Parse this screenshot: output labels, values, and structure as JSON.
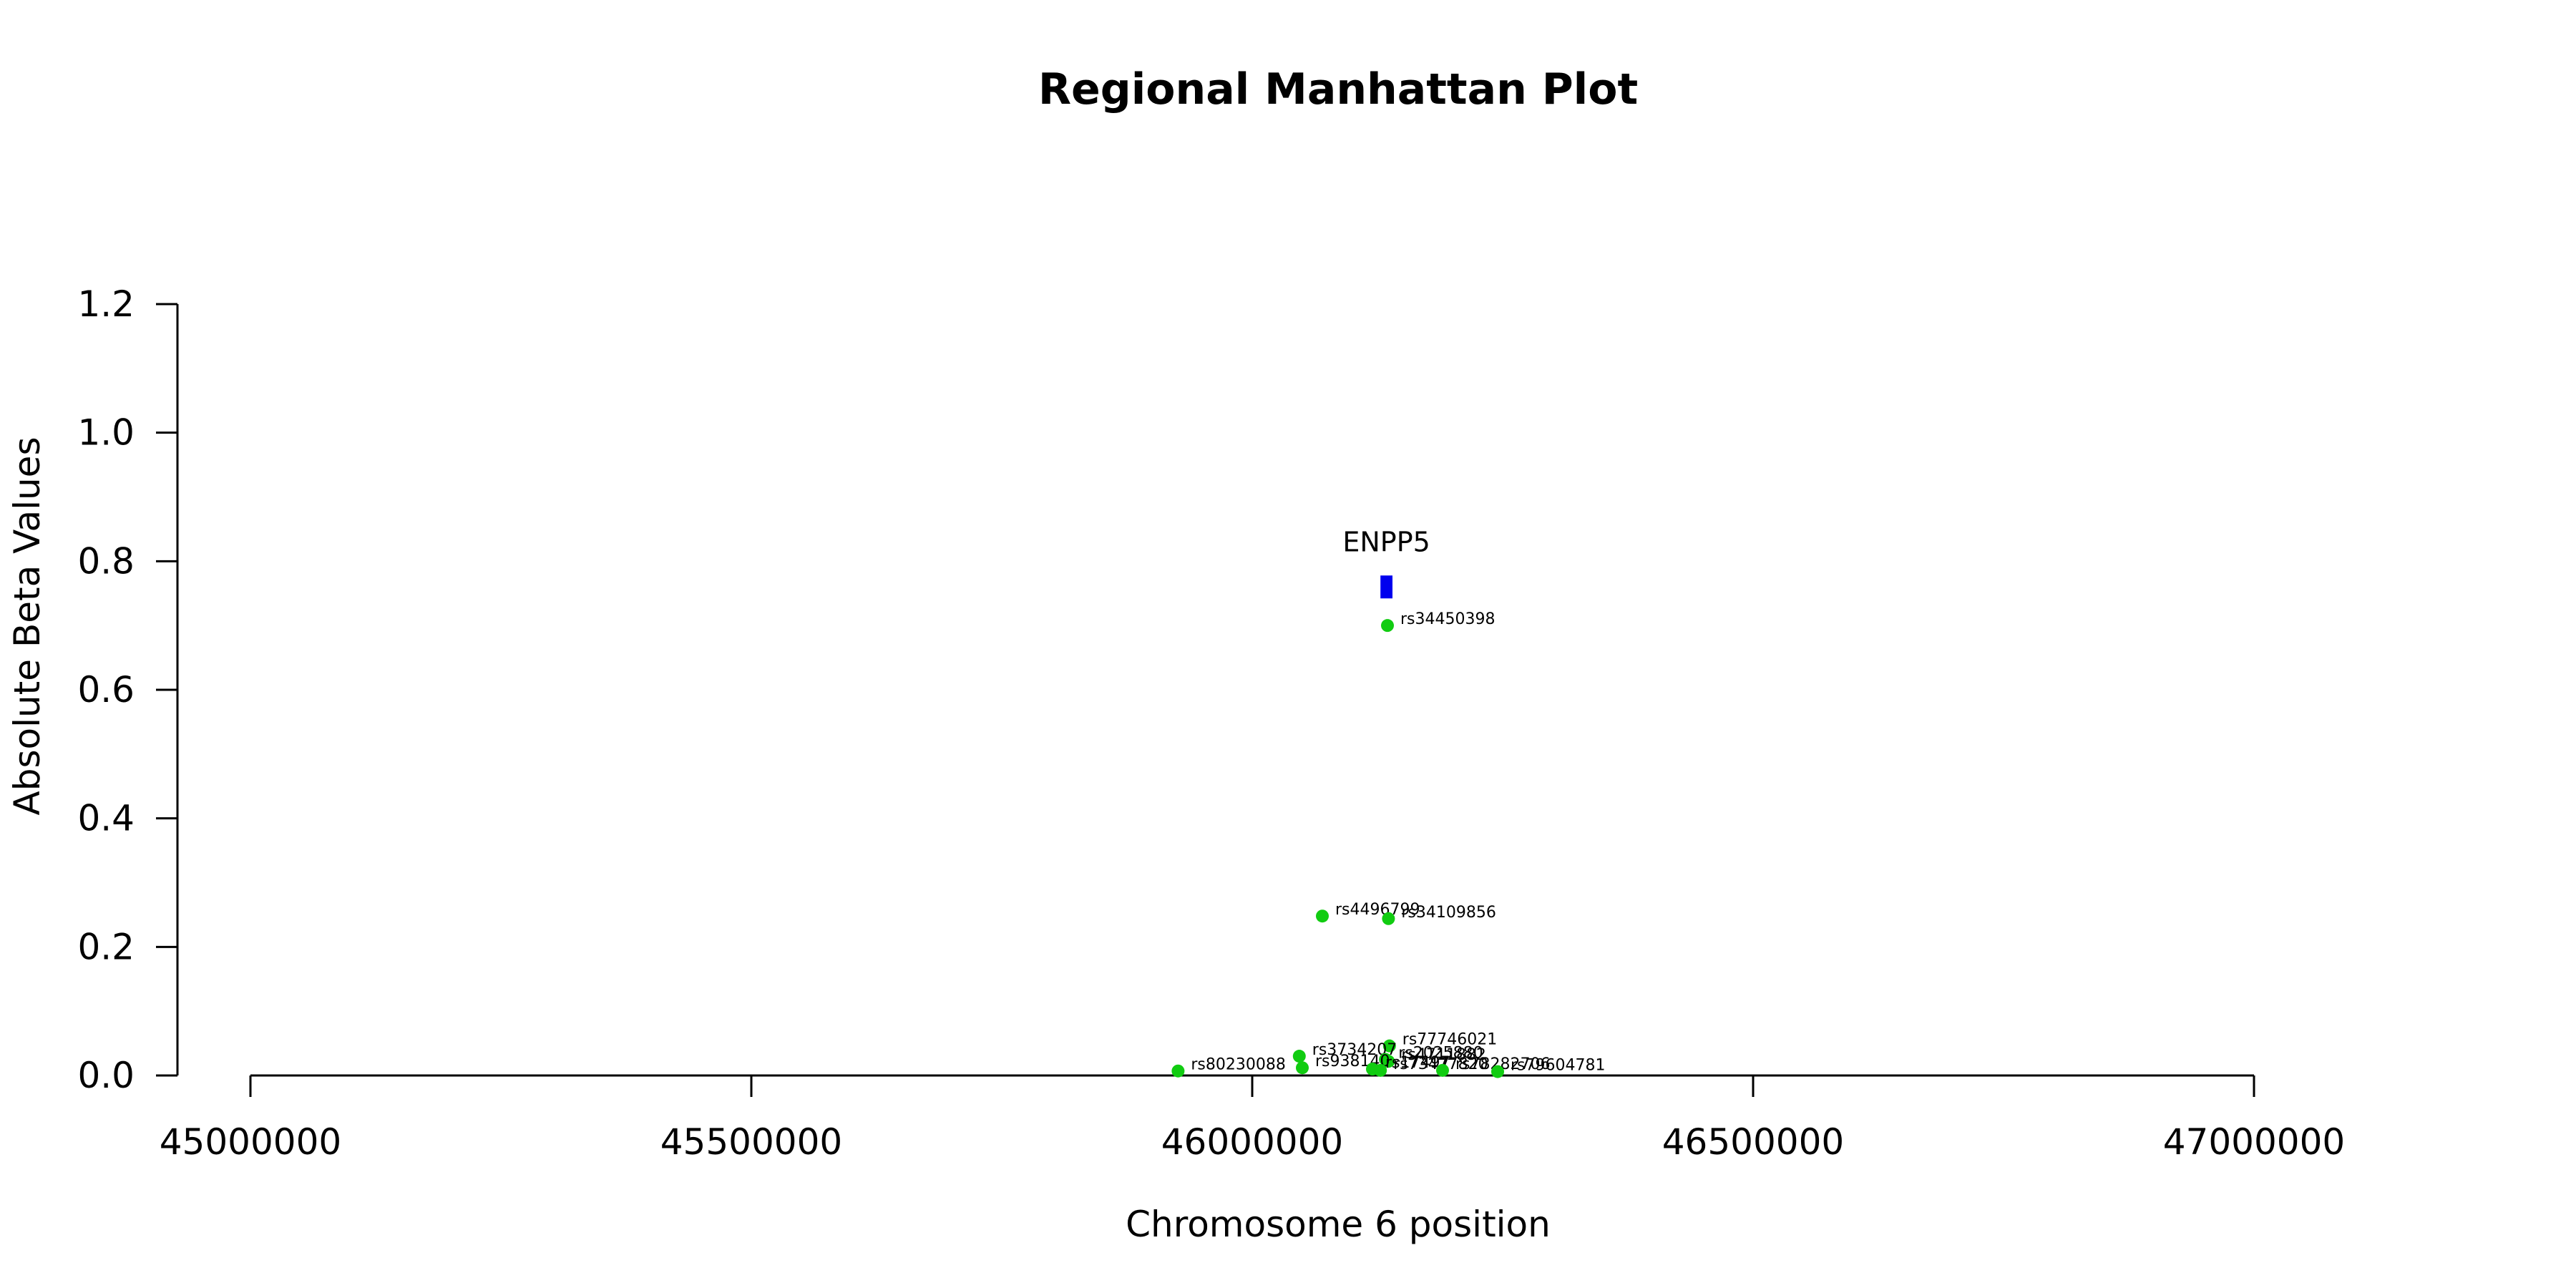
{
  "chart_data": {
    "type": "scatter",
    "title": "Regional Manhattan Plot",
    "xlabel": "Chromosome 6 position",
    "ylabel": "Absolute Beta Values",
    "xlim": [
      45000000,
      47000000
    ],
    "ylim": [
      0.0,
      1.2
    ],
    "xticks": [
      45000000,
      45500000,
      46000000,
      46500000,
      47000000
    ],
    "xtick_labels": [
      "45000000",
      "45500000",
      "46000000",
      "46500000",
      "47000000"
    ],
    "yticks": [
      0.0,
      0.2,
      0.4,
      0.6,
      0.8,
      1.0,
      1.2
    ],
    "ytick_labels": [
      "0.0",
      "0.2",
      "0.4",
      "0.6",
      "0.8",
      "1.0",
      "1.2"
    ],
    "grid": false,
    "point_color": "#11cc11",
    "gene_color": "#0000ee",
    "genes": [
      {
        "name": "ENPP5",
        "start": 46128000,
        "end": 46140000,
        "value": 0.76
      }
    ],
    "points": [
      {
        "label": "rs34450398",
        "x": 46135000,
        "y": 0.7
      },
      {
        "label": "rs4496799",
        "x": 46070000,
        "y": 0.248
      },
      {
        "label": "rs34109856",
        "x": 46136000,
        "y": 0.244
      },
      {
        "label": "rs77746021",
        "x": 46137000,
        "y": 0.046
      },
      {
        "label": "rs3734207",
        "x": 46047000,
        "y": 0.03
      },
      {
        "label": "rs2025880",
        "x": 46133000,
        "y": 0.025
      },
      {
        "label": "rs4711882",
        "x": 46136000,
        "y": 0.022
      },
      {
        "label": "rs938140",
        "x": 46050000,
        "y": 0.012
      },
      {
        "label": "rs17497",
        "x": 46120000,
        "y": 0.01
      },
      {
        "label": "rs73477820",
        "x": 46128000,
        "y": 0.008
      },
      {
        "label": "rs78282706",
        "x": 46190000,
        "y": 0.008
      },
      {
        "label": "rs80230088",
        "x": 45926000,
        "y": 0.007
      },
      {
        "label": "rs79604781",
        "x": 46245000,
        "y": 0.006
      }
    ]
  }
}
